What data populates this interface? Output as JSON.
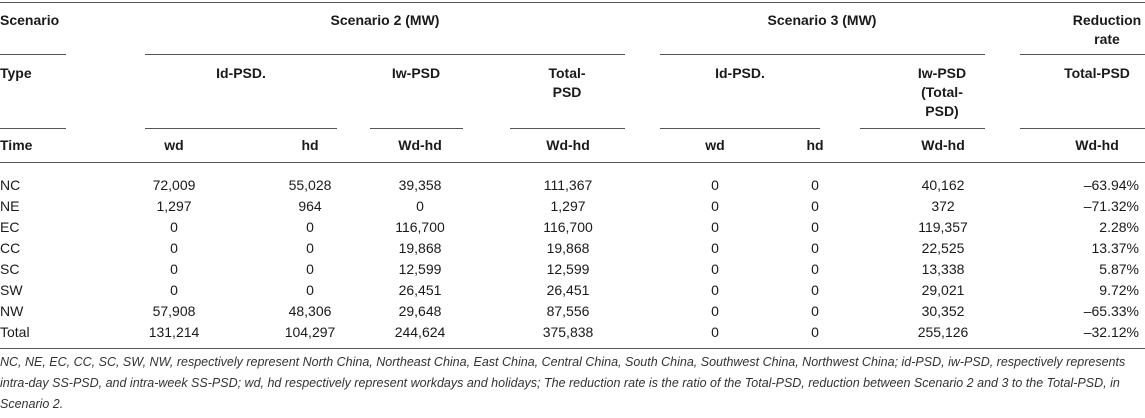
{
  "headers": {
    "scenario": "Scenario",
    "scenario2": "Scenario 2 (MW)",
    "scenario3": "Scenario 3 (MW)",
    "reduction_l1": "Reduction",
    "reduction_l2": "rate",
    "type": "Type",
    "s2_id": "Id-PSD.",
    "s2_iw": "Iw-PSD",
    "s2_total_l1": "Total-",
    "s2_total_l2": "PSD",
    "s3_id": "Id-PSD.",
    "s3_iw_l1": "Iw-PSD",
    "s3_iw_l2": "(Total-",
    "s3_iw_l3": "PSD)",
    "red_total": "Total-PSD",
    "time": "Time",
    "wd1": "wd",
    "hd1": "hd",
    "wdhd1": "Wd-hd",
    "wdhd2": "Wd-hd",
    "wd2": "wd",
    "hd2": "hd",
    "wdhd3": "Wd-hd",
    "wdhd4": "Wd-hd"
  },
  "rows": [
    [
      "NC",
      "72,009",
      "55,028",
      "39,358",
      "111,367",
      "0",
      "0",
      "40,162",
      "–63.94%"
    ],
    [
      "NE",
      "1,297",
      "964",
      "0",
      "1,297",
      "0",
      "0",
      "372",
      "–71.32%"
    ],
    [
      "EC",
      "0",
      "0",
      "116,700",
      "116,700",
      "0",
      "0",
      "119,357",
      "2.28%"
    ],
    [
      "CC",
      "0",
      "0",
      "19,868",
      "19,868",
      "0",
      "0",
      "22,525",
      "13.37%"
    ],
    [
      "SC",
      "0",
      "0",
      "12,599",
      "12,599",
      "0",
      "0",
      "13,338",
      "5.87%"
    ],
    [
      "SW",
      "0",
      "0",
      "26,451",
      "26,451",
      "0",
      "0",
      "29,021",
      "9.72%"
    ],
    [
      "NW",
      "57,908",
      "48,306",
      "29,648",
      "87,556",
      "0",
      "0",
      "30,352",
      "–65.33%"
    ],
    [
      "Total",
      "131,214",
      "104,297",
      "244,624",
      "375,838",
      "0",
      "0",
      "255,126",
      "–32.12%"
    ]
  ],
  "footnote": "NC, NE, EC, CC, SC, SW, NW, respectively represent North China, Northeast China, East China, Central China, South China, Southwest China, Northwest China; id-PSD, iw-PSD, respectively represents intra-day SS-PSD, and intra-week SS-PSD; wd, hd respectively represent workdays and holidays; The reduction rate is the ratio of the Total-PSD, reduction between Scenario 2 and 3 to the Total-PSD, in Scenario 2."
}
